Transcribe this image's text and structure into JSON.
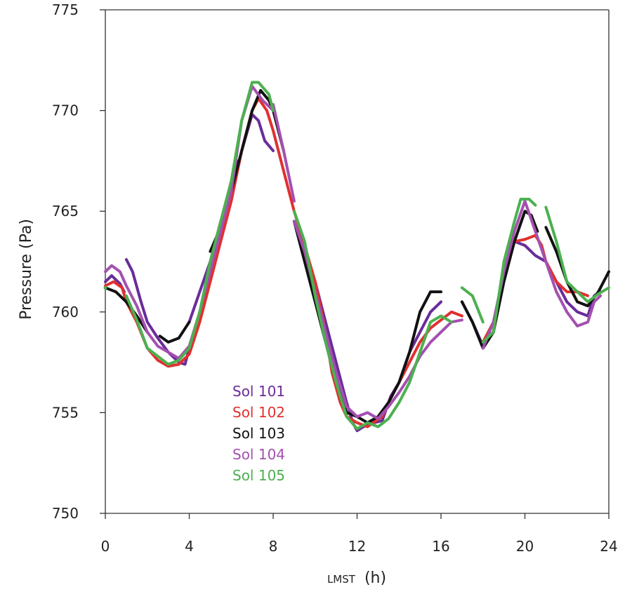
{
  "chart_data": {
    "type": "line",
    "xlabel_prefix": "LMST",
    "xlabel_unit": "(h)",
    "ylabel": "Pressure (Pa)",
    "xlim": [
      0,
      24
    ],
    "ylim": [
      750,
      775
    ],
    "x_ticks": [
      "0",
      "4",
      "8",
      "12",
      "16",
      "20",
      "24"
    ],
    "y_ticks": [
      "750",
      "755",
      "760",
      "765",
      "770",
      "775"
    ],
    "x_tick_values": [
      0,
      4,
      8,
      12,
      16,
      20,
      24
    ],
    "y_tick_values": [
      750,
      755,
      760,
      765,
      770,
      775
    ],
    "legend_position": "lower-left-center",
    "grid": false,
    "series": [
      {
        "name": "Sol 101",
        "color": "#6a2c9a",
        "segments": [
          [
            [
              0,
              761.5
            ],
            [
              0.3,
              761.8
            ],
            [
              0.7,
              761.4
            ],
            [
              0.9,
              761.0
            ]
          ],
          [
            [
              1.0,
              762.6
            ],
            [
              1.3,
              762.0
            ],
            [
              1.7,
              760.5
            ],
            [
              2.0,
              759.5
            ],
            [
              2.5,
              758.7
            ],
            [
              3.0,
              758.0
            ],
            [
              3.5,
              757.5
            ],
            [
              3.8,
              757.4
            ],
            [
              4.0,
              758.2
            ]
          ],
          [
            [
              4.0,
              759.5
            ],
            [
              4.5,
              761.0
            ],
            [
              5.0,
              762.5
            ],
            [
              5.5,
              764.5
            ],
            [
              6.0,
              766.0
            ],
            [
              6.3,
              767.5
            ]
          ],
          [
            [
              6.5,
              768.0
            ],
            [
              7.0,
              769.8
            ],
            [
              7.3,
              769.5
            ],
            [
              7.6,
              768.5
            ],
            [
              8.0,
              768.0
            ]
          ],
          [
            [
              9.0,
              764.5
            ],
            [
              9.5,
              763.0
            ],
            [
              10.0,
              761.5
            ],
            [
              10.5,
              759.5
            ],
            [
              11.0,
              757.5
            ],
            [
              11.5,
              755.5
            ],
            [
              11.8,
              754.5
            ],
            [
              12.0,
              754.1
            ],
            [
              12.3,
              754.3
            ],
            [
              12.8,
              754.5
            ],
            [
              13.2,
              754.6
            ],
            [
              13.6,
              755.8
            ],
            [
              14.0,
              756.5
            ],
            [
              14.5,
              758.0
            ],
            [
              15.0,
              759.0
            ],
            [
              15.5,
              760.0
            ],
            [
              16.0,
              760.5
            ]
          ],
          [
            [
              17.0,
              760.5
            ],
            [
              17.5,
              759.5
            ],
            [
              18.0,
              758.3
            ],
            [
              18.5,
              759.0
            ],
            [
              19.0,
              762.0
            ],
            [
              19.5,
              763.5
            ],
            [
              20.0,
              763.3
            ],
            [
              20.5,
              762.8
            ],
            [
              21.0,
              762.5
            ],
            [
              21.5,
              761.5
            ],
            [
              22.0,
              760.5
            ],
            [
              22.5,
              760.0
            ],
            [
              23.0,
              759.8
            ],
            [
              23.3,
              760.8
            ],
            [
              23.6,
              761.0
            ]
          ]
        ]
      },
      {
        "name": "Sol 102",
        "color": "#e03030",
        "segments": [
          [
            [
              0,
              761.3
            ],
            [
              0.4,
              761.5
            ],
            [
              0.8,
              761.2
            ],
            [
              1.0,
              760.5
            ],
            [
              1.5,
              759.5
            ],
            [
              2.0,
              758.2
            ],
            [
              2.5,
              757.6
            ],
            [
              3.0,
              757.3
            ],
            [
              3.5,
              757.4
            ],
            [
              4.0,
              757.9
            ],
            [
              4.5,
              759.5
            ],
            [
              5.0,
              761.5
            ],
            [
              5.5,
              763.5
            ],
            [
              6.0,
              765.5
            ],
            [
              6.5,
              768.0
            ],
            [
              7.0,
              770.0
            ],
            [
              7.3,
              770.6
            ],
            [
              7.7,
              770.0
            ],
            [
              8.0,
              769.0
            ],
            [
              8.5,
              767.0
            ],
            [
              9.0,
              765.0
            ],
            [
              9.5,
              763.3
            ],
            [
              10.0,
              761.5
            ],
            [
              10.5,
              759.0
            ],
            [
              10.8,
              757.0
            ],
            [
              11.2,
              755.5
            ],
            [
              11.5,
              754.8
            ],
            [
              12.0,
              754.5
            ],
            [
              12.5,
              754.3
            ],
            [
              12.9,
              754.6
            ],
            [
              13.2,
              754.8
            ],
            [
              13.5,
              755.5
            ],
            [
              14.0,
              756.5
            ],
            [
              14.5,
              757.5
            ],
            [
              15.0,
              758.5
            ],
            [
              15.5,
              759.2
            ],
            [
              16.0,
              759.6
            ],
            [
              16.5,
              760.0
            ],
            [
              17.0,
              759.8
            ]
          ],
          [
            [
              18.0,
              758.5
            ],
            [
              18.5,
              759.5
            ],
            [
              19.0,
              761.8
            ],
            [
              19.5,
              763.5
            ],
            [
              20.0,
              763.6
            ],
            [
              20.5,
              763.8
            ],
            [
              20.8,
              763.3
            ],
            [
              21.0,
              762.5
            ],
            [
              21.5,
              761.5
            ],
            [
              22.0,
              761.0
            ],
            [
              22.5,
              761.0
            ],
            [
              23.0,
              760.8
            ]
          ]
        ]
      },
      {
        "name": "Sol 103",
        "color": "#111111",
        "segments": [
          [
            [
              0,
              761.2
            ],
            [
              0.5,
              761.0
            ],
            [
              1.0,
              760.5
            ],
            [
              1.5,
              759.8
            ],
            [
              2.0,
              759.0
            ]
          ],
          [
            [
              2.6,
              758.8
            ],
            [
              3.0,
              758.5
            ],
            [
              3.5,
              758.7
            ],
            [
              4.0,
              759.5
            ]
          ],
          [
            [
              5.0,
              763.0
            ],
            [
              5.5,
              764.2
            ],
            [
              6.0,
              766.0
            ],
            [
              6.5,
              768.0
            ],
            [
              7.0,
              770.0
            ],
            [
              7.4,
              771.0
            ],
            [
              7.8,
              770.5
            ],
            [
              8.0,
              770.0
            ],
            [
              8.5,
              768.0
            ]
          ],
          [
            [
              9.0,
              764.5
            ],
            [
              9.5,
              762.5
            ],
            [
              10.0,
              760.5
            ],
            [
              10.5,
              758.5
            ],
            [
              11.0,
              756.5
            ],
            [
              11.5,
              755.0
            ],
            [
              12.0,
              754.8
            ],
            [
              12.5,
              754.5
            ],
            [
              13.0,
              754.8
            ],
            [
              13.5,
              755.5
            ],
            [
              14.0,
              756.5
            ],
            [
              14.5,
              758.0
            ],
            [
              15.0,
              760.0
            ],
            [
              15.5,
              761.0
            ],
            [
              16.0,
              761.0
            ]
          ],
          [
            [
              17.0,
              760.5
            ],
            [
              17.5,
              759.5
            ],
            [
              18.0,
              758.2
            ],
            [
              18.5,
              759.0
            ],
            [
              19.0,
              761.5
            ],
            [
              19.5,
              763.5
            ],
            [
              20.0,
              765.0
            ],
            [
              20.3,
              764.8
            ],
            [
              20.6,
              764.0
            ]
          ],
          [
            [
              21.0,
              764.2
            ],
            [
              21.5,
              763.0
            ],
            [
              22.0,
              761.5
            ],
            [
              22.5,
              760.5
            ],
            [
              23.0,
              760.3
            ],
            [
              23.5,
              761.0
            ],
            [
              24.0,
              762.0
            ]
          ]
        ]
      },
      {
        "name": "Sol 104",
        "color": "#a450b0",
        "segments": [
          [
            [
              0,
              762.0
            ],
            [
              0.3,
              762.3
            ],
            [
              0.7,
              762.0
            ],
            [
              1.0,
              761.3
            ],
            [
              1.5,
              760.3
            ],
            [
              2.0,
              759.0
            ],
            [
              2.5,
              758.3
            ],
            [
              3.0,
              758.0
            ],
            [
              3.5,
              757.7
            ],
            [
              4.0,
              758.3
            ],
            [
              4.5,
              760.0
            ],
            [
              5.0,
              762.0
            ],
            [
              5.5,
              764.0
            ],
            [
              6.0,
              766.0
            ],
            [
              6.5,
              769.5
            ],
            [
              7.0,
              771.2
            ],
            [
              7.5,
              770.5
            ],
            [
              8.0,
              770.0
            ]
          ],
          [
            [
              8.0,
              770.3
            ],
            [
              8.5,
              768.0
            ],
            [
              9.0,
              765.5
            ]
          ],
          [
            [
              9.0,
              764.5
            ],
            [
              9.5,
              763.0
            ],
            [
              10.0,
              761.0
            ],
            [
              10.5,
              759.0
            ],
            [
              11.0,
              757.0
            ],
            [
              11.5,
              755.3
            ],
            [
              12.0,
              754.8
            ],
            [
              12.5,
              755.0
            ],
            [
              13.0,
              754.7
            ],
            [
              13.5,
              755.3
            ],
            [
              14.0,
              756.0
            ],
            [
              14.5,
              756.8
            ],
            [
              15.0,
              757.8
            ],
            [
              15.5,
              758.5
            ],
            [
              16.0,
              759.0
            ],
            [
              16.5,
              759.5
            ],
            [
              17.0,
              759.6
            ]
          ],
          [
            [
              18.0,
              758.2
            ],
            [
              18.5,
              759.5
            ],
            [
              19.0,
              762.0
            ],
            [
              19.5,
              764.0
            ],
            [
              20.0,
              765.5
            ],
            [
              20.5,
              764.0
            ],
            [
              21.0,
              762.5
            ],
            [
              21.5,
              761.0
            ],
            [
              22.0,
              760.0
            ],
            [
              22.5,
              759.3
            ],
            [
              23.0,
              759.5
            ],
            [
              23.3,
              760.5
            ],
            [
              23.6,
              760.8
            ]
          ]
        ]
      },
      {
        "name": "Sol 105",
        "color": "#4cb050",
        "segments": [
          [
            [
              0,
              761.2
            ]
          ],
          [
            [
              1.0,
              760.8
            ],
            [
              1.5,
              759.6
            ],
            [
              2.0,
              758.2
            ],
            [
              2.5,
              757.8
            ],
            [
              3.0,
              757.4
            ],
            [
              3.5,
              757.6
            ],
            [
              4.0,
              758.2
            ],
            [
              4.5,
              760.0
            ],
            [
              5.0,
              762.5
            ],
            [
              5.5,
              764.5
            ],
            [
              6.0,
              766.5
            ],
            [
              6.5,
              769.5
            ],
            [
              7.0,
              771.4
            ],
            [
              7.3,
              771.4
            ],
            [
              7.8,
              770.8
            ],
            [
              8.0,
              770.0
            ]
          ],
          [
            [
              9.0,
              765.0
            ],
            [
              9.5,
              763.5
            ],
            [
              10.0,
              760.8
            ],
            [
              10.5,
              758.5
            ],
            [
              11.0,
              756.5
            ],
            [
              11.5,
              754.8
            ],
            [
              12.0,
              754.2
            ],
            [
              12.5,
              754.5
            ],
            [
              13.0,
              754.3
            ],
            [
              13.5,
              754.7
            ],
            [
              14.0,
              755.5
            ],
            [
              14.5,
              756.5
            ],
            [
              15.0,
              758.0
            ],
            [
              15.5,
              759.5
            ],
            [
              16.0,
              759.8
            ],
            [
              16.5,
              759.5
            ]
          ],
          [
            [
              17.0,
              761.2
            ],
            [
              17.5,
              760.8
            ],
            [
              18.0,
              759.5
            ]
          ],
          [
            [
              18.0,
              758.5
            ],
            [
              18.5,
              759.0
            ],
            [
              19.0,
              762.5
            ],
            [
              19.5,
              764.5
            ],
            [
              19.8,
              765.6
            ],
            [
              20.2,
              765.6
            ],
            [
              20.5,
              765.3
            ]
          ],
          [
            [
              21.0,
              765.2
            ],
            [
              21.5,
              763.5
            ],
            [
              22.0,
              761.5
            ],
            [
              22.5,
              761.0
            ],
            [
              23.0,
              760.5
            ],
            [
              23.5,
              760.9
            ],
            [
              24.0,
              761.2
            ]
          ]
        ]
      }
    ]
  }
}
